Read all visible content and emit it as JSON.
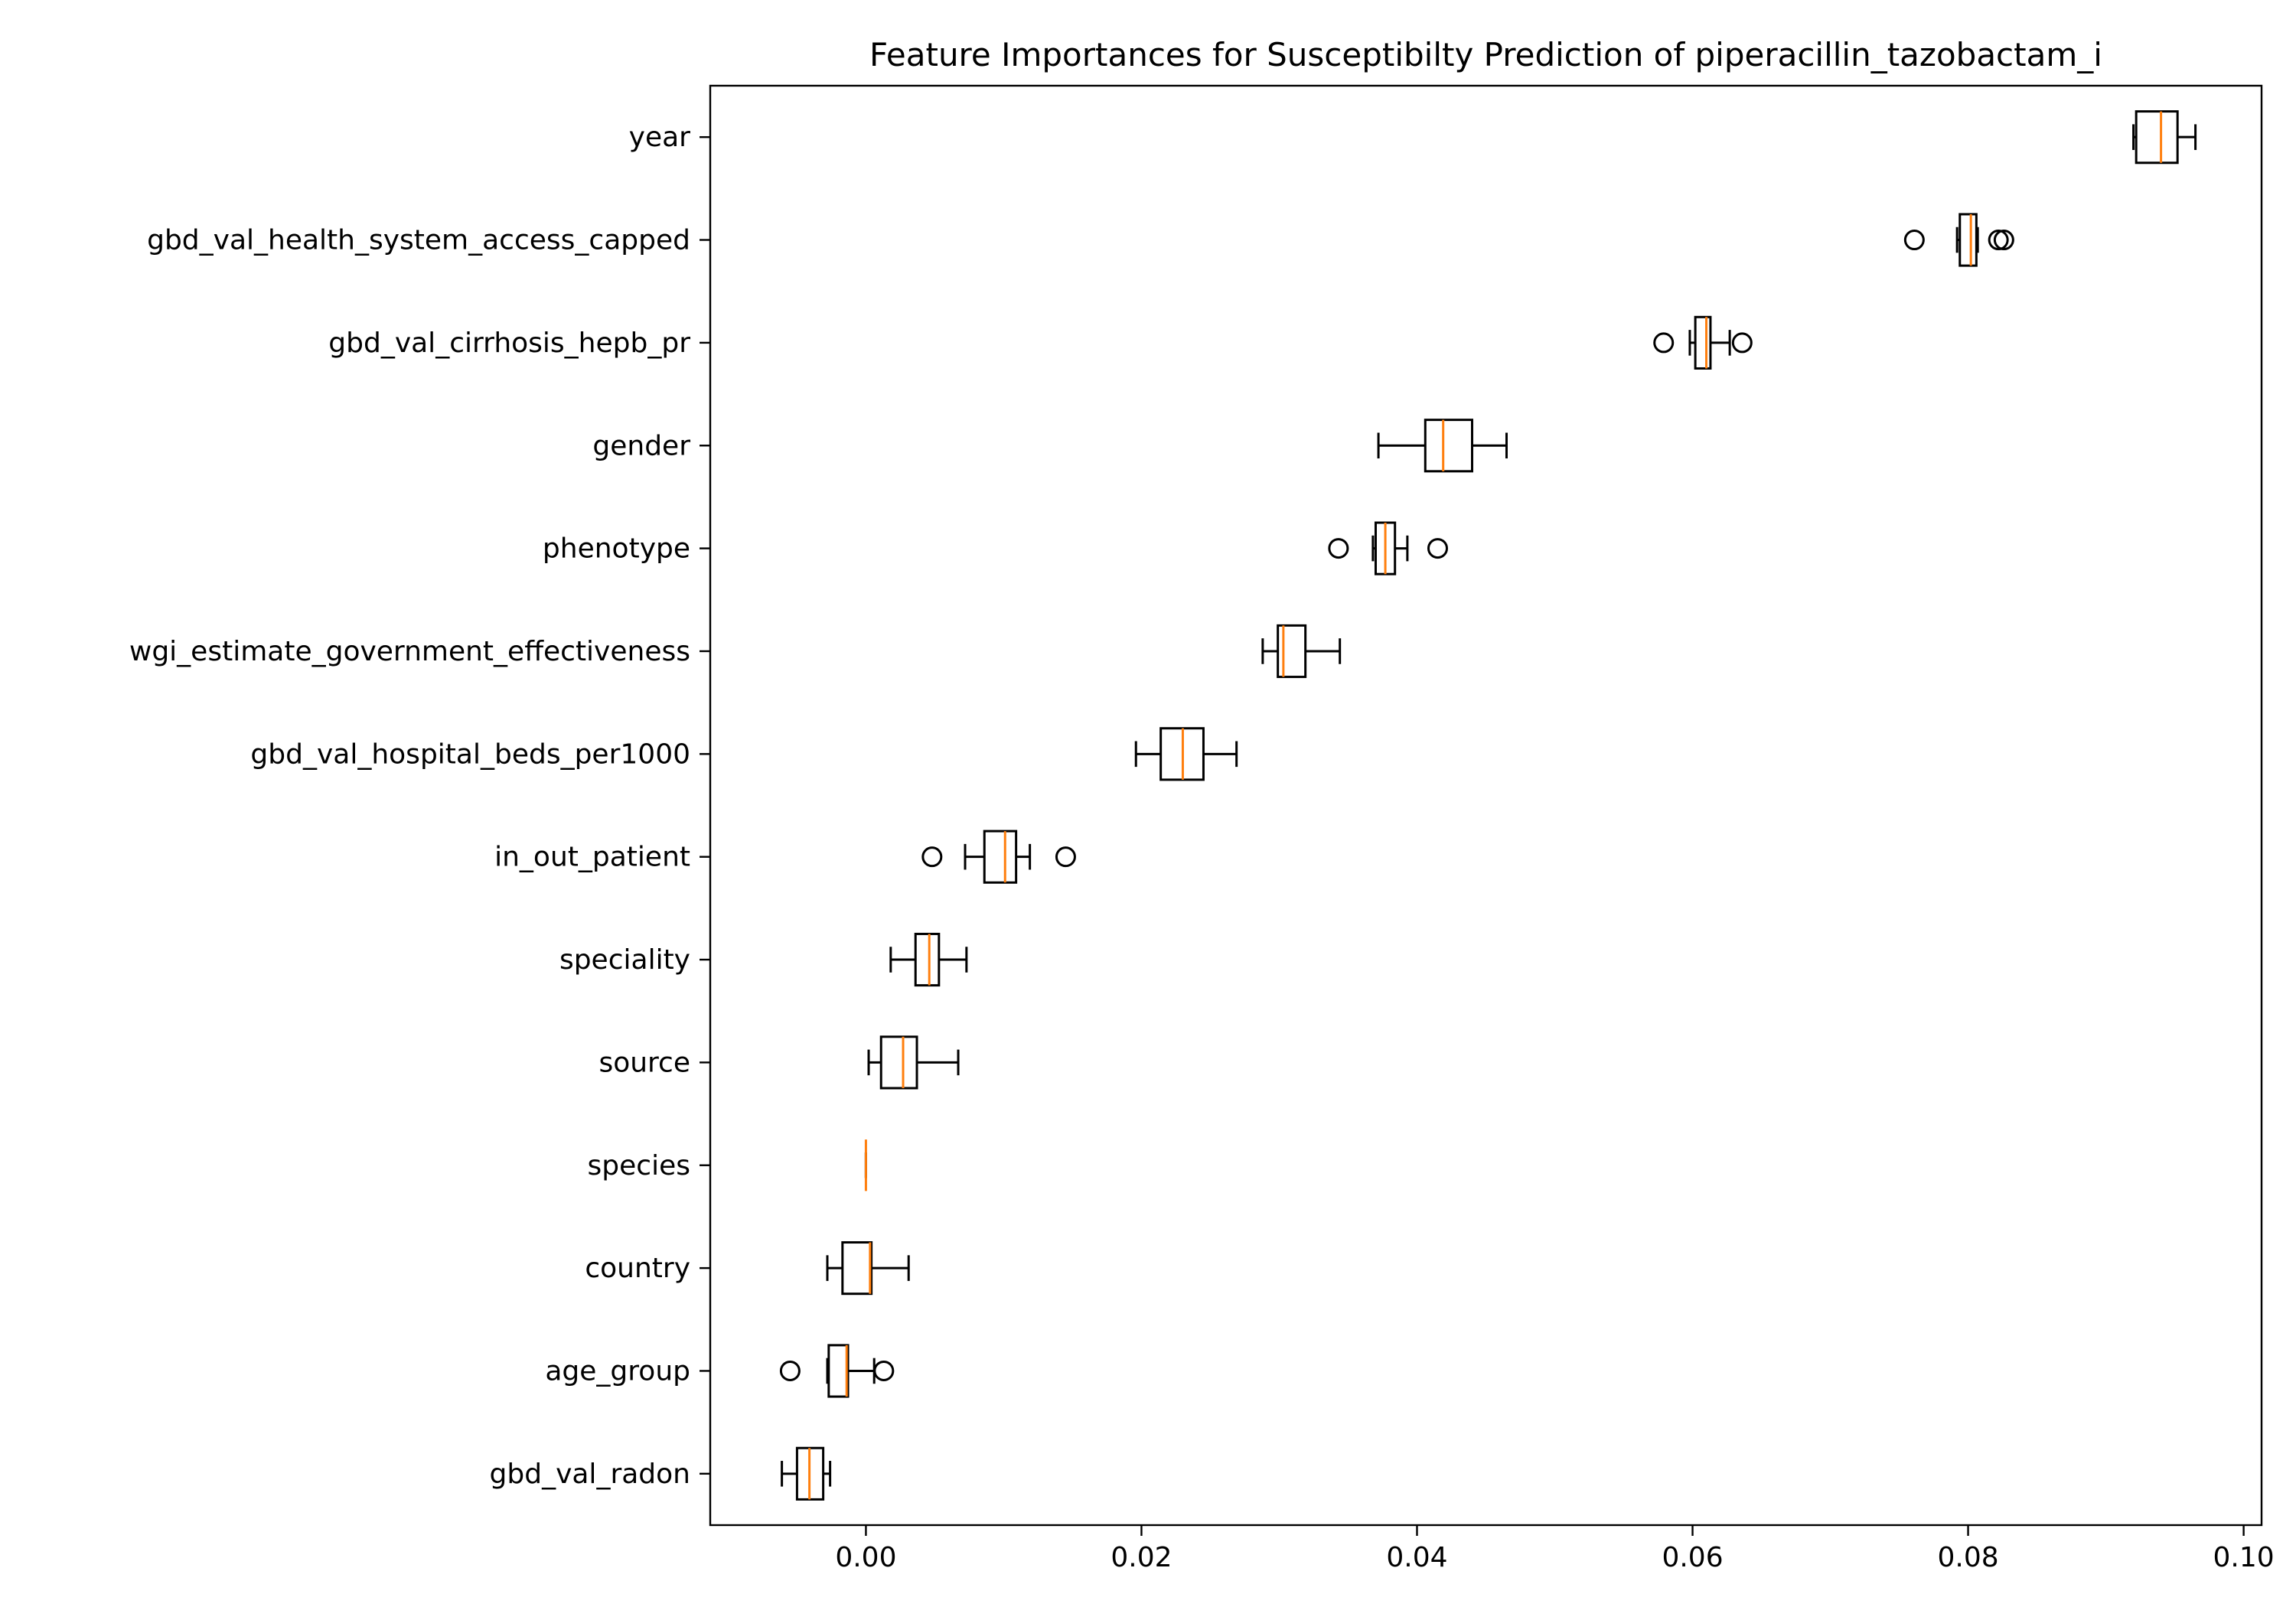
{
  "chart_data": {
    "type": "boxplot",
    "orientation": "horizontal",
    "title": "Feature Importances for Susceptibilty Prediction of piperacillin_tazobactam_i",
    "xlabel": "",
    "ylabel": "",
    "xlim": [
      -0.0113,
      0.1013
    ],
    "xticks": [
      0.0,
      0.02,
      0.04,
      0.06,
      0.08,
      0.1
    ],
    "xtick_labels": [
      "0.00",
      "0.02",
      "0.04",
      "0.06",
      "0.08",
      "0.10"
    ],
    "grid": false,
    "legend": "none",
    "colors": {
      "box": "#000000",
      "median": "#ff7f0e",
      "background": "#ffffff"
    },
    "features": [
      {
        "name": "year",
        "whislo": 0.092,
        "q1": 0.0922,
        "med": 0.094,
        "q3": 0.0952,
        "whishi": 0.0965,
        "fliers": []
      },
      {
        "name": "gbd_val_health_system_access_capped",
        "whislo": 0.0792,
        "q1": 0.0794,
        "med": 0.0802,
        "q3": 0.0806,
        "whishi": 0.0807,
        "fliers": [
          0.0761,
          0.0822,
          0.0826
        ]
      },
      {
        "name": "gbd_val_cirrhosis_hepb_pr",
        "whislo": 0.0598,
        "q1": 0.0602,
        "med": 0.061,
        "q3": 0.0613,
        "whishi": 0.0627,
        "fliers": [
          0.0579,
          0.0636
        ]
      },
      {
        "name": "gender",
        "whislo": 0.0372,
        "q1": 0.0406,
        "med": 0.0419,
        "q3": 0.044,
        "whishi": 0.0465,
        "fliers": []
      },
      {
        "name": "phenotype",
        "whislo": 0.0368,
        "q1": 0.037,
        "med": 0.0377,
        "q3": 0.0384,
        "whishi": 0.0393,
        "fliers": [
          0.0343,
          0.0415
        ]
      },
      {
        "name": "wgi_estimate_government_effectiveness",
        "whislo": 0.0288,
        "q1": 0.0299,
        "med": 0.0303,
        "q3": 0.0319,
        "whishi": 0.0344,
        "fliers": []
      },
      {
        "name": "gbd_val_hospital_beds_per1000",
        "whislo": 0.0196,
        "q1": 0.0214,
        "med": 0.023,
        "q3": 0.0245,
        "whishi": 0.0269,
        "fliers": []
      },
      {
        "name": "in_out_patient",
        "whislo": 0.0072,
        "q1": 0.0086,
        "med": 0.0101,
        "q3": 0.0109,
        "whishi": 0.0119,
        "fliers": [
          0.0048,
          0.0145
        ]
      },
      {
        "name": "speciality",
        "whislo": 0.0018,
        "q1": 0.0036,
        "med": 0.0046,
        "q3": 0.0053,
        "whishi": 0.0073,
        "fliers": []
      },
      {
        "name": "source",
        "whislo": 0.0002,
        "q1": 0.0011,
        "med": 0.0027,
        "q3": 0.0037,
        "whishi": 0.0067,
        "fliers": []
      },
      {
        "name": "species",
        "whislo": 0.0,
        "q1": 0.0,
        "med": 0.0,
        "q3": 0.0,
        "whishi": 0.0,
        "fliers": []
      },
      {
        "name": "country",
        "whislo": -0.0028,
        "q1": -0.0017,
        "med": 0.0003,
        "q3": 0.0004,
        "whishi": 0.0031,
        "fliers": []
      },
      {
        "name": "age_group",
        "whislo": -0.0028,
        "q1": -0.0027,
        "med": -0.0014,
        "q3": -0.0013,
        "whishi": 0.0006,
        "fliers": [
          -0.0055,
          0.0013
        ]
      },
      {
        "name": "gbd_val_radon",
        "whislo": -0.0061,
        "q1": -0.005,
        "med": -0.0041,
        "q3": -0.0031,
        "whishi": -0.0026,
        "fliers": []
      }
    ]
  }
}
